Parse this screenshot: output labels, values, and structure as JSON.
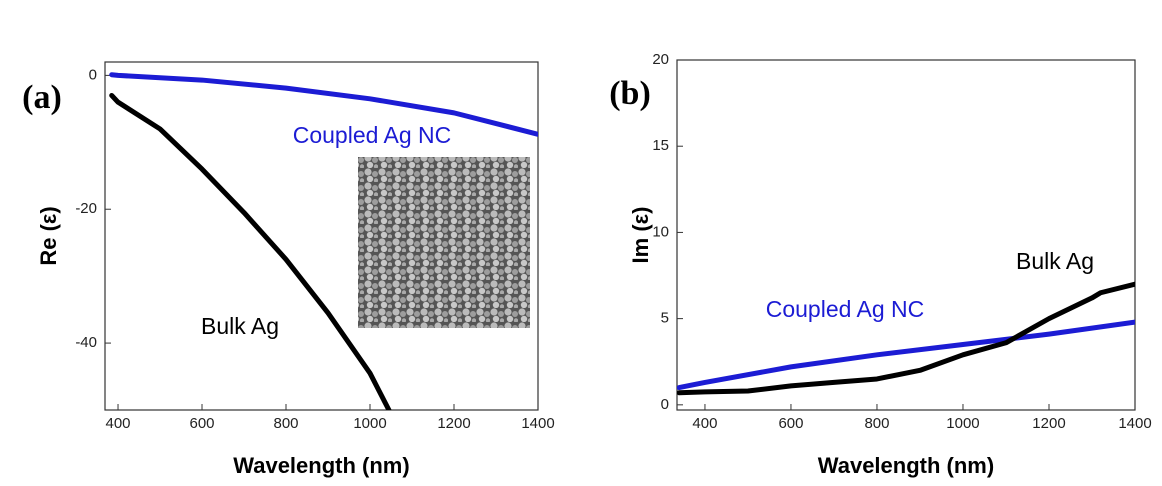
{
  "chart_data": [
    {
      "type": "line",
      "panel_label": "(a)",
      "xlabel": "Wavelength (nm)",
      "ylabel": "Re (ε)",
      "xlim": [
        369,
        1400
      ],
      "ylim": [
        -50,
        2
      ],
      "xticks": [
        400,
        600,
        800,
        1000,
        1200,
        1400
      ],
      "yticks": [
        0,
        -20,
        -40
      ],
      "series": [
        {
          "name": "Coupled Ag NC",
          "color": "#1c1cd4",
          "x": [
            385,
            400,
            600,
            800,
            1000,
            1200,
            1400
          ],
          "values": [
            0.1,
            0,
            -0.7,
            -1.9,
            -3.5,
            -5.6,
            -8.8
          ]
        },
        {
          "name": "Bulk Ag",
          "color": "#000000",
          "x": [
            385,
            400,
            500,
            600,
            700,
            800,
            900,
            1000,
            1045
          ],
          "values": [
            -3,
            -4,
            -8,
            -14,
            -20.5,
            -27.5,
            -35.5,
            -44.5,
            -50
          ]
        }
      ],
      "annotations": [
        {
          "text": "Coupled Ag NC",
          "color": "#1c1cd4"
        },
        {
          "text": "Bulk Ag",
          "color": "#000000"
        }
      ]
    },
    {
      "type": "line",
      "panel_label": "(b)",
      "xlabel": "Wavelength (nm)",
      "ylabel": "Im (ε)",
      "xlim": [
        335,
        1400
      ],
      "ylim": [
        -0.3,
        20
      ],
      "xticks": [
        400,
        600,
        800,
        1000,
        1200,
        1400
      ],
      "yticks": [
        0,
        5,
        10,
        15,
        20
      ],
      "series": [
        {
          "name": "Coupled Ag NC",
          "color": "#1c1cd4",
          "x": [
            340,
            400,
            600,
            800,
            1000,
            1200,
            1400
          ],
          "values": [
            1.0,
            1.3,
            2.2,
            2.9,
            3.5,
            4.1,
            4.8
          ]
        },
        {
          "name": "Bulk Ag",
          "color": "#000000",
          "x": [
            340,
            400,
            500,
            600,
            700,
            800,
            900,
            1000,
            1100,
            1200,
            1300,
            1320,
            1400
          ],
          "values": [
            0.7,
            0.75,
            0.8,
            1.1,
            1.3,
            1.5,
            2.0,
            2.9,
            3.6,
            5.0,
            6.2,
            6.5,
            7.0
          ]
        }
      ],
      "annotations": [
        {
          "text": "Bulk Ag",
          "color": "#000000"
        },
        {
          "text": "Coupled Ag NC",
          "color": "#1c1cd4"
        }
      ]
    }
  ]
}
